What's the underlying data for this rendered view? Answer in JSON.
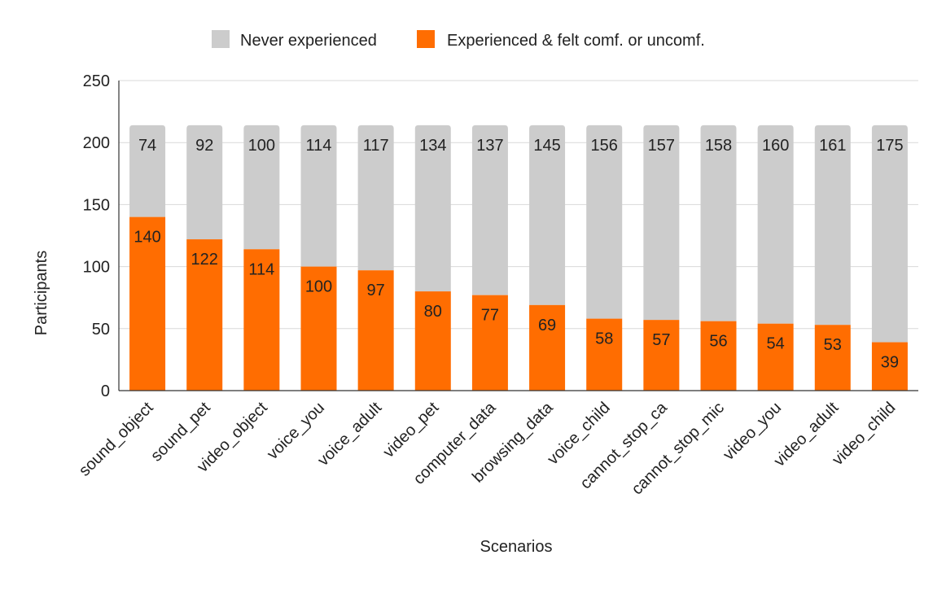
{
  "chart_data": {
    "type": "bar",
    "stacked": true,
    "title": "",
    "xlabel": "Scenarios",
    "ylabel": "Participants",
    "ylim": [
      0,
      250
    ],
    "yticks": [
      0,
      50,
      100,
      150,
      200,
      250
    ],
    "grid": true,
    "legend_position": "top",
    "categories": [
      "sound_object",
      "sound_pet",
      "video_object",
      "voice_you",
      "voice_adult",
      "video_pet",
      "computer_data",
      "browsing_data",
      "voice_child",
      "cannot_stop_ca",
      "cannot_stop_mic",
      "video_you",
      "video_adult",
      "video_child"
    ],
    "series": [
      {
        "name": "Experienced & felt comf. or uncomf.",
        "color": "#ff6d01",
        "values": [
          140,
          122,
          114,
          100,
          97,
          80,
          77,
          69,
          58,
          57,
          56,
          54,
          53,
          39
        ],
        "labels": [
          "140",
          "122",
          "114",
          "100",
          "97",
          "80",
          "77",
          "69",
          "58",
          "57",
          "56",
          "54",
          "53",
          "39"
        ]
      },
      {
        "name": "Never experienced",
        "color": "#cccccc",
        "values": [
          74,
          92,
          100,
          114,
          117,
          134,
          137,
          145,
          156,
          157,
          158,
          160,
          161,
          175
        ],
        "labels": [
          "74",
          "92",
          "100",
          "114",
          "117",
          "134",
          "137",
          "145",
          "156",
          "157",
          "158",
          "160",
          "161",
          "175"
        ]
      }
    ],
    "legend": [
      {
        "name": "Never experienced",
        "color": "#cccccc"
      },
      {
        "name": "Experienced & felt comf. or uncomf.",
        "color": "#ff6d01"
      }
    ]
  }
}
